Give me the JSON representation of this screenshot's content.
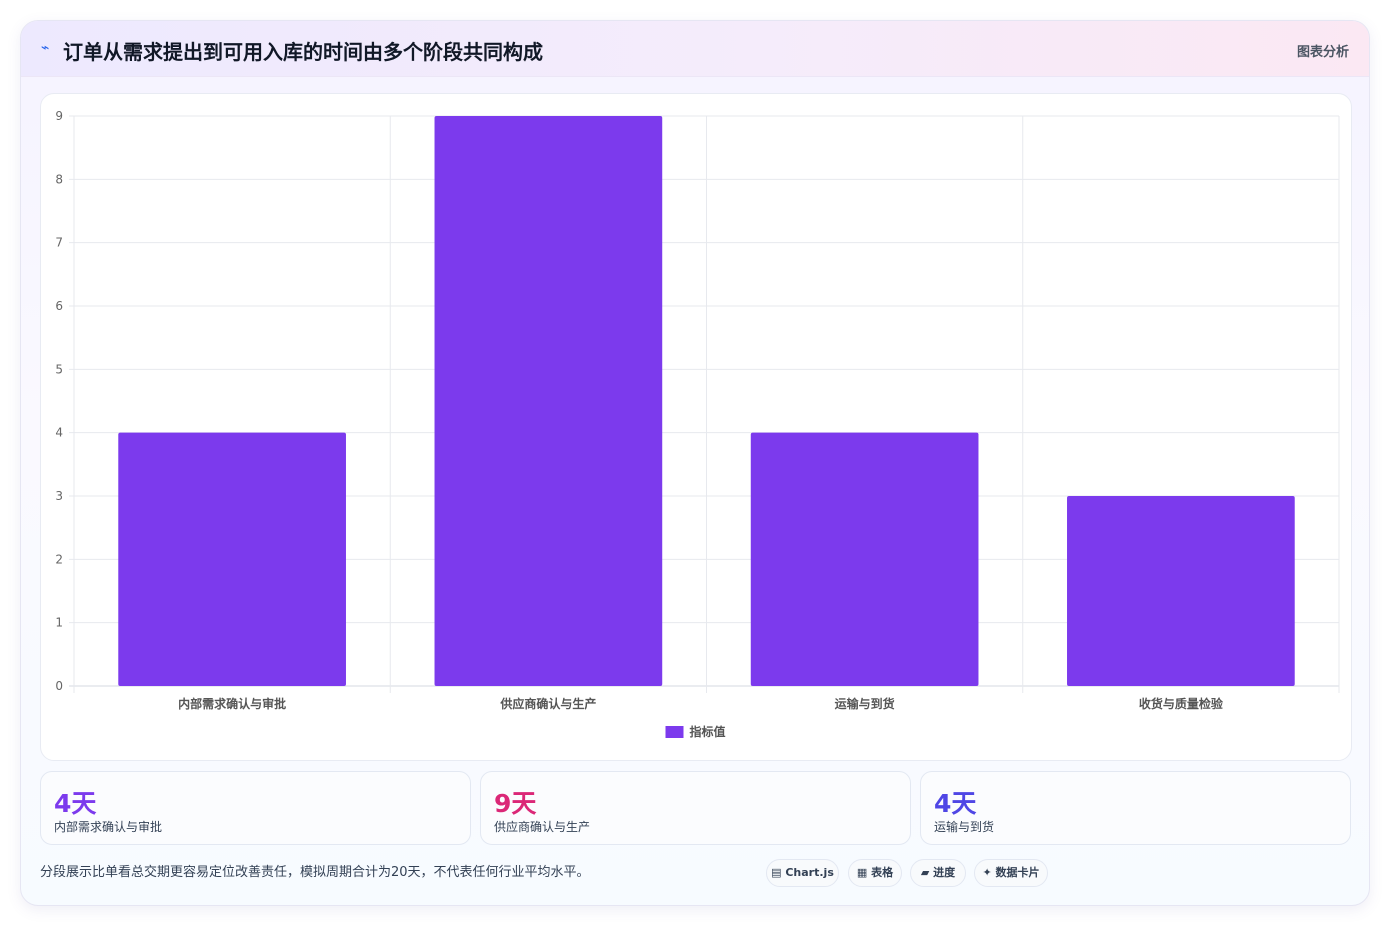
{
  "header": {
    "icon": "⌁",
    "title": "订单从需求提出到可用入库的时间由多个阶段共同构成",
    "tag": "图表分析"
  },
  "chart_data": {
    "type": "bar",
    "categories": [
      "内部需求确认与审批",
      "供应商确认与生产",
      "运输与到货",
      "收货与质量检验"
    ],
    "series": [
      {
        "name": "指标值",
        "values": [
          4,
          9,
          4,
          3
        ],
        "color": "#7c3aed"
      }
    ],
    "ylim": [
      0,
      9
    ],
    "yticks": [
      0,
      1,
      2,
      3,
      4,
      5,
      6,
      7,
      8,
      9
    ],
    "grid": true,
    "legend": "bottom"
  },
  "stats": [
    {
      "value": "4天",
      "label": "内部需求确认与审批",
      "color": "#7c3aed"
    },
    {
      "value": "9天",
      "label": "供应商确认与生产",
      "color": "#db2777"
    },
    {
      "value": "4天",
      "label": "运输与到货",
      "color": "#4f46e5"
    }
  ],
  "note": "分段展示比单看总交期更容易定位改善责任，模拟周期合计为20天，不代表任何行业平均水平。",
  "chips": [
    {
      "icon": "▤",
      "label": "Chart.js"
    },
    {
      "icon": "▦",
      "label": "表格"
    },
    {
      "icon": "▰",
      "label": "进度"
    },
    {
      "icon": "✦",
      "label": "数据卡片"
    }
  ],
  "colors": {
    "accent": "#7c3aed",
    "pink": "#db2777",
    "indigo": "#4f46e5"
  }
}
